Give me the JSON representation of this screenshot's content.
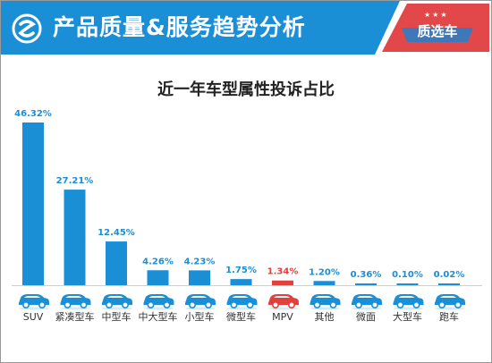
{
  "header": {
    "title": "产品质量&服务趋势分析",
    "badge": "质选车",
    "logo_icon": "swirl-logo-icon",
    "accent": "#1a8fd6",
    "badge_color": "#e2474a"
  },
  "chart_data": {
    "type": "bar",
    "title": "近一年车型属性投诉占比",
    "xlabel": "",
    "ylabel": "",
    "ylim": [
      0,
      50
    ],
    "grid": false,
    "categories": [
      "SUV",
      "紧凑型车",
      "中型车",
      "中大型车",
      "小型车",
      "微型车",
      "MPV",
      "其他",
      "微面",
      "大型车",
      "跑车"
    ],
    "values": [
      46.32,
      27.21,
      12.45,
      4.26,
      4.23,
      1.75,
      1.34,
      1.2,
      0.36,
      0.1,
      0.02
    ],
    "labels": [
      "46.32%",
      "27.21%",
      "12.45%",
      "4.26%",
      "4.23%",
      "1.75%",
      "1.34%",
      "1.20%",
      "0.36%",
      "0.10%",
      "0.02%"
    ],
    "highlight_index": 6,
    "bar_color": "#1a8fd6",
    "highlight_color": "#e0413c",
    "icons": [
      "suv-car-icon",
      "sedan-car-icon",
      "sedan-car-icon",
      "sedan-car-icon",
      "hatchback-car-icon",
      "mini-car-icon",
      "mpv-car-icon",
      "pickup-car-icon",
      "van-car-icon",
      "sedan-car-icon",
      "sports-car-icon"
    ]
  }
}
